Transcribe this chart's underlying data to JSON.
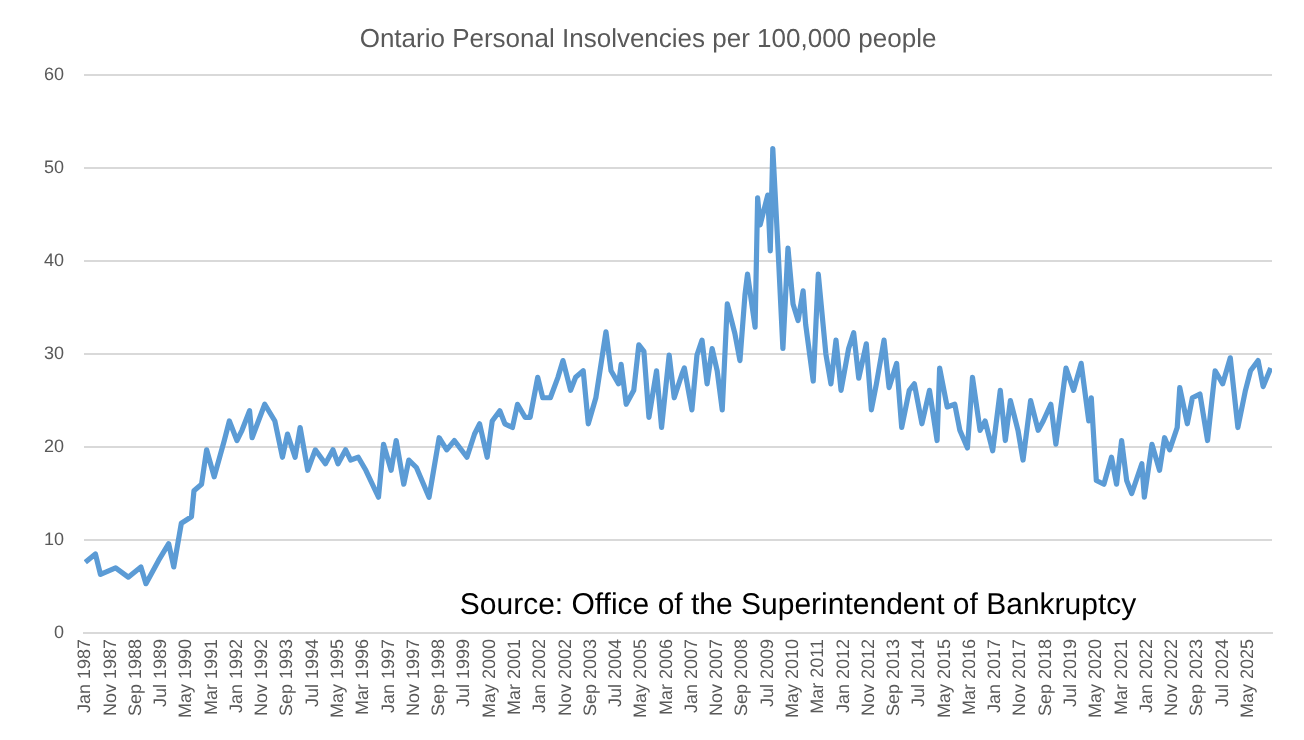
{
  "chart_data": {
    "type": "line",
    "title": "Ontario Personal Insolvencies per 100,000 people",
    "annotations": [
      "Source: Office of the Superintendent of Bankruptcy"
    ],
    "x": [
      "1987-01",
      "1987-05",
      "1987-07",
      "1988-01",
      "1988-06",
      "1988-11",
      "1989-01",
      "1989-06",
      "1989-10",
      "1989-12",
      "1990-03",
      "1990-07",
      "1990-08",
      "1990-11",
      "1991-01",
      "1991-04",
      "1991-08",
      "1991-10",
      "1992-01",
      "1992-03",
      "1992-06",
      "1992-07",
      "1992-12",
      "1993-04",
      "1993-07",
      "1993-09",
      "1993-12",
      "1994-02",
      "1994-05",
      "1994-08",
      "1994-12",
      "1995-03",
      "1995-05",
      "1995-08",
      "1995-10",
      "1996-01",
      "1996-04",
      "1996-09",
      "1996-11",
      "1997-02",
      "1997-04",
      "1997-07",
      "1997-09",
      "1997-12",
      "1998-05",
      "1998-09",
      "1998-12",
      "1999-03",
      "1999-08",
      "1999-11",
      "2000-01",
      "2000-04",
      "2000-06",
      "2000-09",
      "2000-11",
      "2001-02",
      "2001-04",
      "2001-07",
      "2001-09",
      "2001-12",
      "2002-02",
      "2002-05",
      "2002-08",
      "2002-10",
      "2003-01",
      "2003-03",
      "2003-06",
      "2003-08",
      "2003-11",
      "2004-03",
      "2004-05",
      "2004-08",
      "2004-09",
      "2004-11",
      "2005-02",
      "2005-04",
      "2005-06",
      "2005-08",
      "2005-11",
      "2006-01",
      "2006-04",
      "2006-06",
      "2006-09",
      "2006-10",
      "2007-01",
      "2007-03",
      "2007-05",
      "2007-07",
      "2007-09",
      "2007-11",
      "2008-01",
      "2008-03",
      "2008-06",
      "2008-08",
      "2008-10",
      "2008-11",
      "2009-02",
      "2009-03",
      "2009-04",
      "2009-07",
      "2009-08",
      "2009-09",
      "2009-11",
      "2010-01",
      "2010-03",
      "2010-05",
      "2010-07",
      "2010-09",
      "2010-10",
      "2011-01",
      "2011-03",
      "2011-06",
      "2011-08",
      "2011-10",
      "2011-12",
      "2012-03",
      "2012-05",
      "2012-07",
      "2012-10",
      "2012-12",
      "2013-02",
      "2013-05",
      "2013-07",
      "2013-10",
      "2013-12",
      "2014-03",
      "2014-05",
      "2014-08",
      "2014-11",
      "2015-02",
      "2015-03",
      "2015-06",
      "2015-09",
      "2015-11",
      "2016-02",
      "2016-04",
      "2016-07",
      "2016-09",
      "2016-12",
      "2017-03",
      "2017-05",
      "2017-07",
      "2017-10",
      "2017-12",
      "2018-03",
      "2018-06",
      "2018-08",
      "2018-11",
      "2019-01",
      "2019-04",
      "2019-05",
      "2019-08",
      "2019-11",
      "2020-02",
      "2020-03",
      "2020-05",
      "2020-08",
      "2020-11",
      "2021-01",
      "2021-03",
      "2021-05",
      "2021-07",
      "2021-11",
      "2021-12",
      "2022-03",
      "2022-06",
      "2022-08",
      "2022-10",
      "2023-01",
      "2023-02",
      "2023-05",
      "2023-07",
      "2023-10",
      "2024-01",
      "2024-04",
      "2024-07",
      "2024-10",
      "2025-01",
      "2025-04",
      "2025-06",
      "2025-09",
      "2025-11",
      "2026-02"
    ],
    "series": [
      {
        "color": "#5b9bd5",
        "values": [
          7.6,
          8.5,
          6.3,
          7,
          6,
          7.1,
          5.3,
          7.8,
          9.6,
          7.1,
          11.8,
          12.5,
          15.3,
          16,
          19.7,
          16.8,
          20.7,
          22.8,
          20.7,
          21.8,
          23.9,
          21,
          24.6,
          22.8,
          18.9,
          21.4,
          18.9,
          22.1,
          17.5,
          19.7,
          18.2,
          19.7,
          18.2,
          19.7,
          18.6,
          18.9,
          17.5,
          14.6,
          20.3,
          17.5,
          20.7,
          16,
          18.6,
          17.8,
          14.6,
          21,
          19.7,
          20.7,
          18.9,
          21.4,
          22.5,
          18.9,
          22.8,
          23.9,
          22.5,
          22.1,
          24.6,
          23.2,
          23.2,
          27.5,
          25.3,
          25.3,
          27.5,
          29.3,
          26.1,
          27.5,
          28.2,
          22.5,
          25.3,
          32.4,
          28.2,
          26.8,
          28.9,
          24.6,
          26.1,
          31,
          30.3,
          23.2,
          28.2,
          22.1,
          29.9,
          25.3,
          27.8,
          28.5,
          24,
          29.9,
          31.5,
          26.8,
          30.6,
          28.2,
          24,
          35.4,
          32.2,
          29.3,
          36.4,
          38.6,
          32.9,
          46.8,
          43.9,
          47.1,
          41.1,
          52.1,
          41.7,
          30.6,
          41.4,
          35.4,
          33.6,
          36.8,
          33.2,
          27.1,
          38.6,
          30,
          26.8,
          31.5,
          26.1,
          30.6,
          32.3,
          27.4,
          31.1,
          24,
          26.8,
          31.5,
          26.4,
          29,
          22.1,
          26.1,
          26.8,
          22.5,
          26.1,
          20.7,
          28.5,
          24.3,
          24.6,
          21.8,
          19.9,
          27.5,
          21.8,
          22.8,
          19.6,
          26.1,
          20.7,
          25,
          21.8,
          18.6,
          25,
          21.8,
          22.8,
          24.6,
          20.3,
          26.4,
          28.5,
          26.1,
          29,
          22.8,
          25.3,
          16.4,
          16,
          18.9,
          16,
          20.7,
          16.4,
          15,
          18.2,
          14.6,
          20.3,
          17.5,
          21,
          19.7,
          22.1,
          26.4,
          22.5,
          25.3,
          25.7,
          20.7,
          28.2,
          26.8,
          29.6,
          22.1,
          26.1,
          28.2,
          29.3,
          26.5,
          28.5
        ]
      }
    ],
    "xlim": [
      "1987-01",
      "2026-02"
    ],
    "xticks": [
      {
        "value": "1987-01",
        "label": "Jan 1987"
      },
      {
        "value": "1987-11",
        "label": "Nov 1987"
      },
      {
        "value": "1988-09",
        "label": "Sep 1988"
      },
      {
        "value": "1989-07",
        "label": "Jul 1989"
      },
      {
        "value": "1990-05",
        "label": "May 1990"
      },
      {
        "value": "1991-03",
        "label": "Mar 1991"
      },
      {
        "value": "1992-01",
        "label": "Jan 1992"
      },
      {
        "value": "1992-11",
        "label": "Nov 1992"
      },
      {
        "value": "1993-09",
        "label": "Sep 1993"
      },
      {
        "value": "1994-07",
        "label": "Jul 1994"
      },
      {
        "value": "1995-05",
        "label": "May 1995"
      },
      {
        "value": "1996-03",
        "label": "Mar 1996"
      },
      {
        "value": "1997-01",
        "label": "Jan 1997"
      },
      {
        "value": "1997-11",
        "label": "Nov 1997"
      },
      {
        "value": "1998-09",
        "label": "Sep 1998"
      },
      {
        "value": "1999-07",
        "label": "Jul 1999"
      },
      {
        "value": "2000-05",
        "label": "May 2000"
      },
      {
        "value": "2001-03",
        "label": "Mar 2001"
      },
      {
        "value": "2002-01",
        "label": "Jan 2002"
      },
      {
        "value": "2002-11",
        "label": "Nov 2002"
      },
      {
        "value": "2003-09",
        "label": "Sep 2003"
      },
      {
        "value": "2004-07",
        "label": "Jul 2004"
      },
      {
        "value": "2005-05",
        "label": "May 2005"
      },
      {
        "value": "2006-03",
        "label": "Mar 2006"
      },
      {
        "value": "2007-01",
        "label": "Jan 2007"
      },
      {
        "value": "2007-11",
        "label": "Nov 2007"
      },
      {
        "value": "2008-09",
        "label": "Sep 2008"
      },
      {
        "value": "2009-07",
        "label": "Jul 2009"
      },
      {
        "value": "2010-05",
        "label": "May 2010"
      },
      {
        "value": "2011-03",
        "label": "Mar 2011"
      },
      {
        "value": "2012-01",
        "label": "Jan 2012"
      },
      {
        "value": "2012-11",
        "label": "Nov 2012"
      },
      {
        "value": "2013-09",
        "label": "Sep 2013"
      },
      {
        "value": "2014-07",
        "label": "Jul 2014"
      },
      {
        "value": "2015-05",
        "label": "May 2015"
      },
      {
        "value": "2016-03",
        "label": "Mar 2016"
      },
      {
        "value": "2017-01",
        "label": "Jan 2017"
      },
      {
        "value": "2017-11",
        "label": "Nov 2017"
      },
      {
        "value": "2018-09",
        "label": "Sep 2018"
      },
      {
        "value": "2019-07",
        "label": "Jul 2019"
      },
      {
        "value": "2020-05",
        "label": "May 2020"
      },
      {
        "value": "2021-03",
        "label": "Mar 2021"
      },
      {
        "value": "2022-01",
        "label": "Jan 2022"
      },
      {
        "value": "2022-11",
        "label": "Nov 2022"
      },
      {
        "value": "2023-09",
        "label": "Sep 2023"
      },
      {
        "value": "2024-07",
        "label": "Jul 2024"
      },
      {
        "value": "2025-05",
        "label": "May 2025"
      }
    ],
    "ylim": [
      0,
      60
    ],
    "yticks": [
      0,
      10,
      20,
      30,
      40,
      50,
      60
    ],
    "grid": "y",
    "marker": "none",
    "line_style": "solid",
    "legend": false
  }
}
